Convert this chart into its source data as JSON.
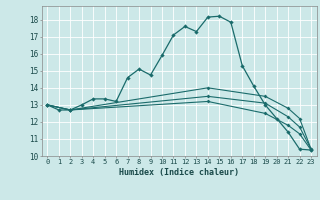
{
  "xlabel": "Humidex (Indice chaleur)",
  "bg_color": "#cce8e8",
  "grid_color": "#ffffff",
  "line_color": "#1a6b6b",
  "xlim": [
    -0.5,
    23.5
  ],
  "ylim": [
    10,
    18.8
  ],
  "xticks": [
    0,
    1,
    2,
    3,
    4,
    5,
    6,
    7,
    8,
    9,
    10,
    11,
    12,
    13,
    14,
    15,
    16,
    17,
    18,
    19,
    20,
    21,
    22,
    23
  ],
  "yticks": [
    10,
    11,
    12,
    13,
    14,
    15,
    16,
    17,
    18
  ],
  "lines": [
    {
      "x": [
        0,
        1,
        2,
        3,
        4,
        5,
        6,
        7,
        8,
        9,
        10,
        11,
        12,
        13,
        14,
        15,
        16,
        17,
        18,
        19,
        20,
        21,
        22,
        23
      ],
      "y": [
        13.0,
        12.7,
        12.7,
        13.0,
        13.35,
        13.35,
        13.2,
        14.6,
        15.1,
        14.75,
        15.9,
        17.1,
        17.6,
        17.3,
        18.15,
        18.2,
        17.85,
        15.3,
        14.1,
        13.0,
        12.2,
        11.4,
        10.4,
        10.35
      ]
    },
    {
      "x": [
        0,
        2,
        14,
        19,
        21,
        22,
        23
      ],
      "y": [
        13.0,
        12.7,
        14.0,
        13.5,
        12.8,
        12.2,
        10.4
      ]
    },
    {
      "x": [
        0,
        2,
        14,
        19,
        21,
        22,
        23
      ],
      "y": [
        13.0,
        12.7,
        13.5,
        13.1,
        12.3,
        11.7,
        10.4
      ]
    },
    {
      "x": [
        0,
        2,
        14,
        19,
        21,
        22,
        23
      ],
      "y": [
        13.0,
        12.7,
        13.2,
        12.5,
        11.8,
        11.3,
        10.35
      ]
    }
  ]
}
